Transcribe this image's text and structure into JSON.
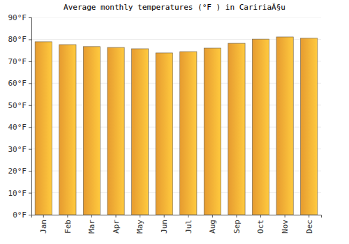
{
  "chart_data": {
    "type": "bar",
    "title": "Average monthly temperatures (°F ) in CaririaÃ§u",
    "categories": [
      "Jan",
      "Feb",
      "Mar",
      "Apr",
      "May",
      "Jun",
      "Jul",
      "Aug",
      "Sep",
      "Oct",
      "Nov",
      "Dec"
    ],
    "values": [
      78.9,
      77.6,
      76.7,
      76.3,
      75.7,
      73.8,
      74.4,
      76.0,
      78.2,
      80.1,
      81.1,
      80.5
    ],
    "color": "#fba934",
    "ylim": [
      0,
      90
    ],
    "yticks": [
      {
        "value": 0,
        "label": "0°F"
      },
      {
        "value": 10,
        "label": "10°F"
      },
      {
        "value": 20,
        "label": "20°F"
      },
      {
        "value": 30,
        "label": "30°F"
      },
      {
        "value": 40,
        "label": "40°F"
      },
      {
        "value": 50,
        "label": "50°F"
      },
      {
        "value": 60,
        "label": "60°F"
      },
      {
        "value": 70,
        "label": "70°F"
      },
      {
        "value": 80,
        "label": "80°F"
      },
      {
        "value": 90,
        "label": "90°F"
      }
    ],
    "grid": true
  }
}
